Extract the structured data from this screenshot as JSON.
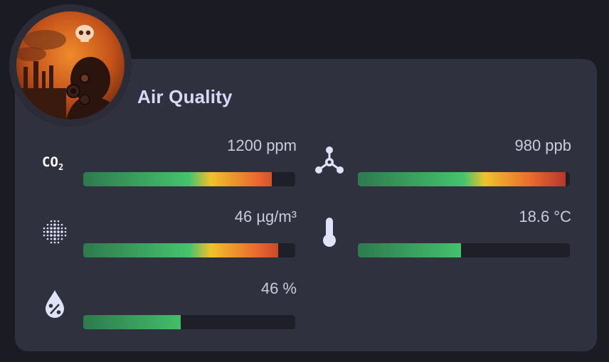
{
  "card": {
    "title": "Air Quality"
  },
  "metrics": [
    {
      "id": "co2",
      "icon": "co2-icon",
      "value_text": "1200 ppm",
      "level": 0.89
    },
    {
      "id": "voc",
      "icon": "molecule-icon",
      "value_text": "980 ppb",
      "level": 0.98
    },
    {
      "id": "pm25",
      "icon": "particulate-dots-icon",
      "value_text": "46 µg/m³",
      "level": 0.92
    },
    {
      "id": "temperature",
      "icon": "thermometer-icon",
      "value_text": "18.6 °C",
      "level": 0.485
    },
    {
      "id": "humidity",
      "icon": "water-percent-icon",
      "value_text": "46 %",
      "level": 0.46
    }
  ],
  "colors": {
    "background": "#1b1c23",
    "card": "#30313f",
    "title": "#d6daf6",
    "bar_track": "#1e1f29",
    "gradient_green": "#45c36d",
    "gradient_yellow": "#f0c22c",
    "gradient_red": "#b0312c"
  }
}
